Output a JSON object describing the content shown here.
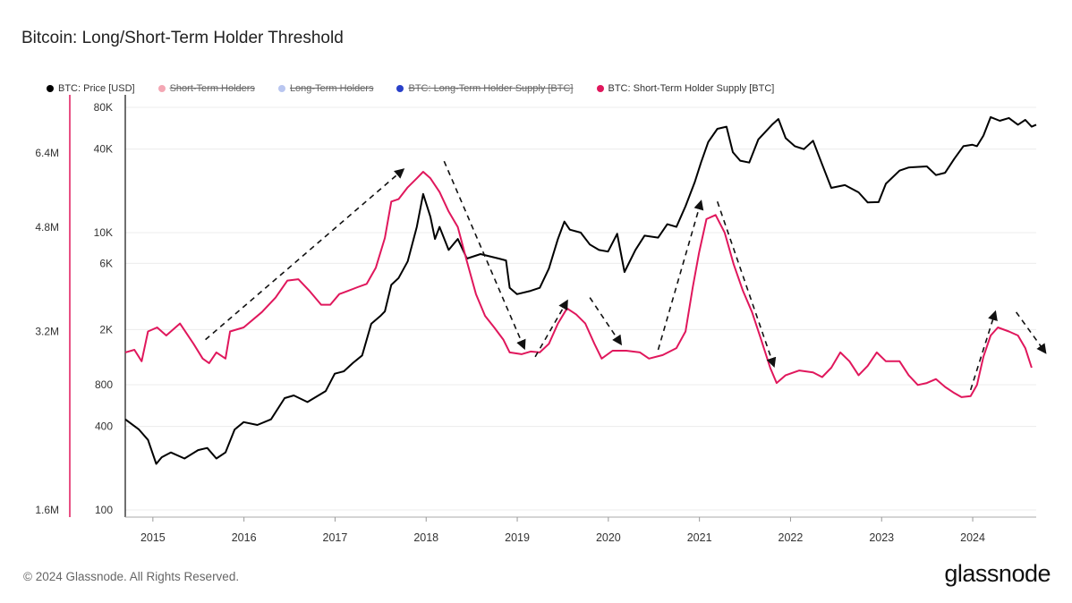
{
  "header": {
    "title": "Bitcoin: Long/Short-Term Holder Threshold"
  },
  "legend": [
    {
      "label": "BTC: Price [USD]",
      "color": "#000000",
      "enabled": true,
      "icon": "dot-icon"
    },
    {
      "label": "Short-Term Holders",
      "color": "#f4a7b4",
      "enabled": false,
      "icon": "dot-icon"
    },
    {
      "label": "Long-Term Holders",
      "color": "#b9c6f0",
      "enabled": false,
      "icon": "dot-icon"
    },
    {
      "label": "BTC: Long-Term Holder Supply [BTC]",
      "color": "#2940c9",
      "enabled": false,
      "icon": "dot-icon"
    },
    {
      "label": "BTC: Short-Term Holder Supply [BTC]",
      "color": "#e0175c",
      "enabled": true,
      "icon": "dot-icon"
    }
  ],
  "footer": {
    "copyright": "© 2024 Glassnode. All Rights Reserved.",
    "brand": "glassnode"
  },
  "chart_data": {
    "type": "line",
    "x_ticks": [
      "2015",
      "2016",
      "2017",
      "2018",
      "2019",
      "2020",
      "2021",
      "2022",
      "2023",
      "2024"
    ],
    "x_range": [
      "2014-09",
      "2024-09"
    ],
    "y_left": {
      "scale": "log",
      "ticks": [
        "1.6M",
        "3.2M",
        "4.8M",
        "6.4M"
      ],
      "range": [
        1600000,
        6400000
      ]
    },
    "y_right_price": {
      "scale": "log",
      "ticks": [
        "100",
        "400",
        "800",
        "2K",
        "6K",
        "10K",
        "40K",
        "80K"
      ],
      "range": [
        100,
        80000
      ]
    },
    "series": [
      {
        "name": "BTC: Price [USD]",
        "color": "#000000",
        "points": [
          [
            2014.7,
            450
          ],
          [
            2014.85,
            380
          ],
          [
            2014.95,
            320
          ],
          [
            2015.04,
            215
          ],
          [
            2015.1,
            240
          ],
          [
            2015.2,
            260
          ],
          [
            2015.35,
            235
          ],
          [
            2015.5,
            270
          ],
          [
            2015.6,
            280
          ],
          [
            2015.7,
            235
          ],
          [
            2015.8,
            260
          ],
          [
            2015.9,
            380
          ],
          [
            2016.0,
            430
          ],
          [
            2016.15,
            410
          ],
          [
            2016.3,
            450
          ],
          [
            2016.45,
            640
          ],
          [
            2016.55,
            670
          ],
          [
            2016.7,
            600
          ],
          [
            2016.9,
            720
          ],
          [
            2017.0,
            960
          ],
          [
            2017.1,
            1000
          ],
          [
            2017.2,
            1150
          ],
          [
            2017.3,
            1300
          ],
          [
            2017.4,
            2200
          ],
          [
            2017.5,
            2500
          ],
          [
            2017.55,
            2700
          ],
          [
            2017.62,
            4200
          ],
          [
            2017.7,
            4700
          ],
          [
            2017.8,
            6200
          ],
          [
            2017.9,
            11000
          ],
          [
            2017.97,
            19000
          ],
          [
            2018.05,
            13000
          ],
          [
            2018.1,
            9000
          ],
          [
            2018.15,
            11000
          ],
          [
            2018.25,
            7500
          ],
          [
            2018.35,
            9000
          ],
          [
            2018.45,
            6500
          ],
          [
            2018.6,
            7000
          ],
          [
            2018.8,
            6500
          ],
          [
            2018.88,
            6300
          ],
          [
            2018.92,
            4000
          ],
          [
            2019.0,
            3600
          ],
          [
            2019.15,
            3800
          ],
          [
            2019.25,
            4000
          ],
          [
            2019.35,
            5500
          ],
          [
            2019.45,
            9000
          ],
          [
            2019.52,
            12000
          ],
          [
            2019.58,
            10500
          ],
          [
            2019.7,
            10000
          ],
          [
            2019.8,
            8200
          ],
          [
            2019.9,
            7500
          ],
          [
            2020.0,
            7300
          ],
          [
            2020.1,
            9800
          ],
          [
            2020.18,
            5200
          ],
          [
            2020.3,
            7500
          ],
          [
            2020.4,
            9500
          ],
          [
            2020.55,
            9200
          ],
          [
            2020.65,
            11500
          ],
          [
            2020.75,
            11000
          ],
          [
            2020.85,
            15500
          ],
          [
            2020.95,
            23000
          ],
          [
            2021.02,
            32000
          ],
          [
            2021.1,
            45000
          ],
          [
            2021.2,
            56000
          ],
          [
            2021.3,
            58000
          ],
          [
            2021.37,
            38000
          ],
          [
            2021.45,
            33000
          ],
          [
            2021.55,
            32000
          ],
          [
            2021.65,
            47000
          ],
          [
            2021.8,
            60000
          ],
          [
            2021.87,
            66000
          ],
          [
            2021.95,
            48000
          ],
          [
            2022.05,
            42000
          ],
          [
            2022.15,
            40000
          ],
          [
            2022.25,
            46000
          ],
          [
            2022.35,
            31000
          ],
          [
            2022.45,
            21000
          ],
          [
            2022.6,
            22000
          ],
          [
            2022.75,
            19500
          ],
          [
            2022.85,
            16500
          ],
          [
            2022.97,
            16600
          ],
          [
            2023.05,
            22500
          ],
          [
            2023.2,
            28000
          ],
          [
            2023.3,
            29500
          ],
          [
            2023.5,
            30000
          ],
          [
            2023.6,
            26000
          ],
          [
            2023.7,
            27000
          ],
          [
            2023.8,
            34000
          ],
          [
            2023.9,
            42000
          ],
          [
            2024.0,
            43000
          ],
          [
            2024.05,
            42000
          ],
          [
            2024.12,
            50000
          ],
          [
            2024.2,
            68000
          ],
          [
            2024.3,
            64000
          ],
          [
            2024.4,
            67000
          ],
          [
            2024.5,
            60000
          ],
          [
            2024.58,
            65000
          ],
          [
            2024.65,
            58000
          ],
          [
            2024.7,
            60000
          ]
        ]
      },
      {
        "name": "BTC: Short-Term Holder Supply [BTC]",
        "color": "#e0175c",
        "points": [
          [
            2014.7,
            2950000
          ],
          [
            2014.8,
            2980000
          ],
          [
            2014.88,
            2850000
          ],
          [
            2014.95,
            3200000
          ],
          [
            2015.05,
            3250000
          ],
          [
            2015.15,
            3150000
          ],
          [
            2015.3,
            3300000
          ],
          [
            2015.45,
            3050000
          ],
          [
            2015.55,
            2880000
          ],
          [
            2015.62,
            2830000
          ],
          [
            2015.7,
            2950000
          ],
          [
            2015.8,
            2880000
          ],
          [
            2015.85,
            3200000
          ],
          [
            2016.0,
            3250000
          ],
          [
            2016.2,
            3450000
          ],
          [
            2016.35,
            3650000
          ],
          [
            2016.48,
            3900000
          ],
          [
            2016.6,
            3920000
          ],
          [
            2016.72,
            3750000
          ],
          [
            2016.85,
            3550000
          ],
          [
            2016.95,
            3550000
          ],
          [
            2017.05,
            3700000
          ],
          [
            2017.15,
            3750000
          ],
          [
            2017.25,
            3800000
          ],
          [
            2017.35,
            3850000
          ],
          [
            2017.45,
            4100000
          ],
          [
            2017.55,
            4600000
          ],
          [
            2017.62,
            5300000
          ],
          [
            2017.7,
            5350000
          ],
          [
            2017.8,
            5600000
          ],
          [
            2017.9,
            5800000
          ],
          [
            2017.97,
            5950000
          ],
          [
            2018.05,
            5800000
          ],
          [
            2018.15,
            5500000
          ],
          [
            2018.25,
            5100000
          ],
          [
            2018.35,
            4800000
          ],
          [
            2018.45,
            4200000
          ],
          [
            2018.55,
            3700000
          ],
          [
            2018.65,
            3400000
          ],
          [
            2018.75,
            3250000
          ],
          [
            2018.85,
            3100000
          ],
          [
            2018.92,
            2950000
          ],
          [
            2019.05,
            2930000
          ],
          [
            2019.15,
            2960000
          ],
          [
            2019.25,
            2950000
          ],
          [
            2019.35,
            3050000
          ],
          [
            2019.45,
            3300000
          ],
          [
            2019.55,
            3500000
          ],
          [
            2019.65,
            3420000
          ],
          [
            2019.75,
            3300000
          ],
          [
            2019.85,
            3050000
          ],
          [
            2019.93,
            2880000
          ],
          [
            2020.05,
            2970000
          ],
          [
            2020.2,
            2970000
          ],
          [
            2020.35,
            2950000
          ],
          [
            2020.45,
            2880000
          ],
          [
            2020.6,
            2920000
          ],
          [
            2020.75,
            3000000
          ],
          [
            2020.85,
            3200000
          ],
          [
            2020.93,
            3800000
          ],
          [
            2021.0,
            4350000
          ],
          [
            2021.08,
            4950000
          ],
          [
            2021.18,
            5030000
          ],
          [
            2021.28,
            4700000
          ],
          [
            2021.38,
            4150000
          ],
          [
            2021.48,
            3750000
          ],
          [
            2021.58,
            3450000
          ],
          [
            2021.68,
            3100000
          ],
          [
            2021.78,
            2780000
          ],
          [
            2021.85,
            2620000
          ],
          [
            2021.95,
            2700000
          ],
          [
            2022.1,
            2750000
          ],
          [
            2022.25,
            2730000
          ],
          [
            2022.35,
            2680000
          ],
          [
            2022.45,
            2780000
          ],
          [
            2022.55,
            2950000
          ],
          [
            2022.65,
            2850000
          ],
          [
            2022.75,
            2700000
          ],
          [
            2022.85,
            2800000
          ],
          [
            2022.95,
            2950000
          ],
          [
            2023.05,
            2850000
          ],
          [
            2023.2,
            2850000
          ],
          [
            2023.3,
            2700000
          ],
          [
            2023.4,
            2600000
          ],
          [
            2023.5,
            2620000
          ],
          [
            2023.6,
            2660000
          ],
          [
            2023.7,
            2580000
          ],
          [
            2023.8,
            2520000
          ],
          [
            2023.88,
            2480000
          ],
          [
            2023.98,
            2490000
          ],
          [
            2024.05,
            2600000
          ],
          [
            2024.12,
            2900000
          ],
          [
            2024.2,
            3150000
          ],
          [
            2024.28,
            3250000
          ],
          [
            2024.4,
            3200000
          ],
          [
            2024.5,
            3150000
          ],
          [
            2024.58,
            3000000
          ],
          [
            2024.65,
            2780000
          ]
        ]
      }
    ],
    "annotations": [
      {
        "type": "dashed-arrow",
        "from": [
          2015.58,
          3100000
        ],
        "to": [
          2017.75,
          6000000
        ]
      },
      {
        "type": "dashed-arrow",
        "from": [
          2018.2,
          6200000
        ],
        "to": [
          2019.08,
          3000000
        ]
      },
      {
        "type": "dashed-arrow",
        "from": [
          2019.2,
          2900000
        ],
        "to": [
          2019.55,
          3600000
        ]
      },
      {
        "type": "dashed-arrow",
        "from": [
          2019.8,
          3650000
        ],
        "to": [
          2020.14,
          3050000
        ]
      },
      {
        "type": "dashed-arrow",
        "from": [
          2020.55,
          2980000
        ],
        "to": [
          2021.02,
          5300000
        ]
      },
      {
        "type": "dashed-arrow",
        "from": [
          2021.2,
          5300000
        ],
        "to": [
          2021.82,
          2800000
        ]
      },
      {
        "type": "dashed-arrow",
        "from": [
          2023.98,
          2550000
        ],
        "to": [
          2024.25,
          3450000
        ]
      },
      {
        "type": "dashed-arrow",
        "from": [
          2024.48,
          3450000
        ],
        "to": [
          2024.8,
          2950000
        ]
      }
    ],
    "grid": true,
    "legend_position": "top-left"
  }
}
